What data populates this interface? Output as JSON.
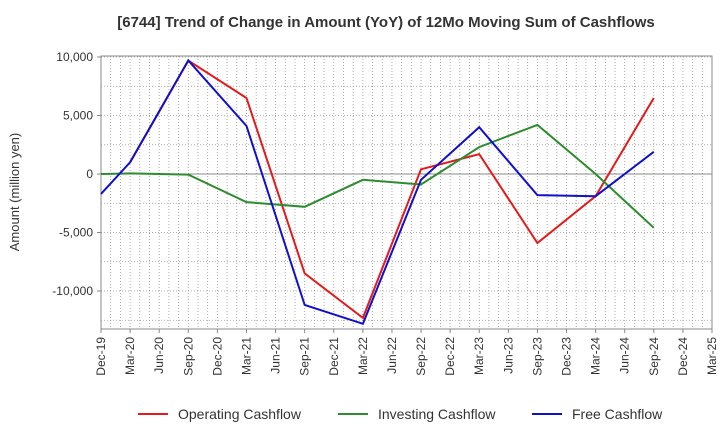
{
  "chart_data": {
    "type": "line",
    "title": "[6744]  Trend of Change in Amount (YoY) of 12Mo Moving Sum of Cashflows",
    "xlabel": "",
    "ylabel": "Amount (million yen)",
    "ylim": [
      -13500,
      10000
    ],
    "yticks": [
      10000,
      5000,
      0,
      -5000,
      -10000
    ],
    "ytick_labels": [
      "10,000",
      "5,000",
      "0",
      "-5,000",
      "-10,000"
    ],
    "categories": [
      "Dec-19",
      "Mar-20",
      "Jun-20",
      "Sep-20",
      "Dec-20",
      "Mar-21",
      "Jun-21",
      "Sep-21",
      "Dec-21",
      "Mar-22",
      "Jun-22",
      "Sep-22",
      "Dec-22",
      "Mar-23",
      "Jun-23",
      "Sep-23",
      "Dec-23",
      "Mar-24",
      "Jun-24",
      "Sep-24",
      "Dec-24",
      "Mar-25"
    ],
    "grid": true,
    "legend_position": "bottom",
    "series": [
      {
        "name": "Operating Cashflow",
        "color": "#e41a1c",
        "points": [
          [
            1,
            1000
          ],
          [
            3,
            9700
          ],
          [
            5,
            6500
          ],
          [
            7,
            -8500
          ],
          [
            9,
            -12300
          ],
          [
            11,
            400
          ],
          [
            13,
            1700
          ],
          [
            15,
            -5900
          ],
          [
            17,
            -1900
          ],
          [
            19,
            6500
          ]
        ]
      },
      {
        "name": "Investing Cashflow",
        "color": "#2e8b2e",
        "points": [
          [
            0,
            0
          ],
          [
            1,
            50
          ],
          [
            3,
            -50
          ],
          [
            5,
            -2400
          ],
          [
            7,
            -2800
          ],
          [
            9,
            -500
          ],
          [
            11,
            -900
          ],
          [
            13,
            2300
          ],
          [
            15,
            4200
          ],
          [
            17,
            0
          ],
          [
            19,
            -4600
          ]
        ]
      },
      {
        "name": "Free Cashflow",
        "color": "#1010cc",
        "points": [
          [
            0,
            -1700
          ],
          [
            1,
            1000
          ],
          [
            3,
            9700
          ],
          [
            5,
            4100
          ],
          [
            7,
            -11200
          ],
          [
            9,
            -12800
          ],
          [
            11,
            -500
          ],
          [
            13,
            4000
          ],
          [
            15,
            -1800
          ],
          [
            17,
            -1900
          ],
          [
            19,
            1900
          ]
        ]
      }
    ]
  }
}
